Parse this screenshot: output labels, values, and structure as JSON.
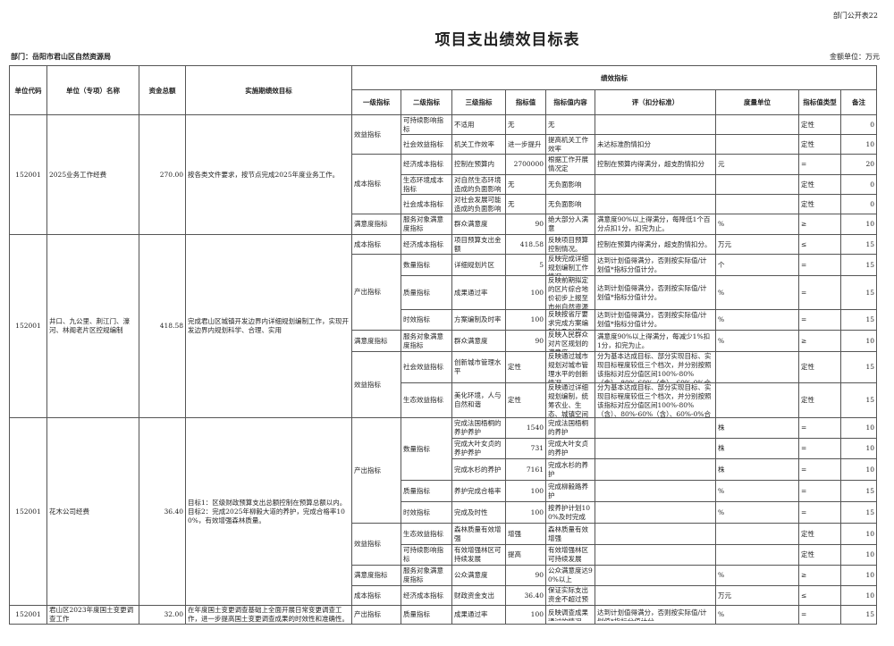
{
  "header": {
    "form_no": "部门公开表22",
    "title": "项目支出绩效目标表",
    "department": "部门：岳阳市君山区自然资源局",
    "amount_unit": "金额单位：万元"
  },
  "columns": {
    "code": "单位代码",
    "name": "单位（专项）名称",
    "amount": "资金总额",
    "goal": "实施期绩效目标",
    "indicators": "绩效指标",
    "level1": "一级指标",
    "level2": "二级指标",
    "level3": "三级指标",
    "value": "指标值",
    "content": "指标值内容",
    "standard": "评（扣分标准）",
    "unit": "度量单位",
    "type": "指标值类型",
    "note": "备注"
  },
  "projects": [
    {
      "code": "152001",
      "name": "2025业务工作经费",
      "amount": "270.00",
      "goal": "按各类文件要求，按节点完成2025年度业务工作。",
      "groups": [
        {
          "level1": "效益指标",
          "subs": [
            {
              "level2": "可持续影响指标",
              "rows": [
                {
                  "level3": "不适用",
                  "value": "无",
                  "content": "无",
                  "standard": "",
                  "unit": "",
                  "type": "定性",
                  "note": "0"
                }
              ]
            },
            {
              "level2": "社会效益指标",
              "rows": [
                {
                  "level3": "机关工作效率",
                  "value": "进一步提升",
                  "content": "提高机关工作效率",
                  "standard": "未达标准酌情扣分",
                  "unit": "",
                  "type": "定性",
                  "note": "10"
                }
              ]
            }
          ]
        },
        {
          "level1": "成本指标",
          "subs": [
            {
              "level2": "经济成本指标",
              "rows": [
                {
                  "level3": "控制在预算内",
                  "value": "2700000",
                  "content": "根据工作开展情况定",
                  "standard": "控制在预算内得满分，超支酌情扣分",
                  "unit": "元",
                  "type": "=",
                  "note": "20"
                }
              ]
            },
            {
              "level2": "生态环境成本指标",
              "rows": [
                {
                  "level3": "对自然生态环境造成的负面影响",
                  "value": "无",
                  "content": "无负面影响",
                  "standard": "",
                  "unit": "",
                  "type": "定性",
                  "note": "0"
                }
              ]
            },
            {
              "level2": "社会成本指标",
              "rows": [
                {
                  "level3": "对社会发展可能造成的负面影响",
                  "value": "无",
                  "content": "无负面影响",
                  "standard": "",
                  "unit": "",
                  "type": "定性",
                  "note": "0"
                }
              ]
            }
          ]
        },
        {
          "level1": "满意度指标",
          "subs": [
            {
              "level2": "服务对象满意度指标",
              "rows": [
                {
                  "level3": "群众满意度",
                  "value": "90",
                  "content": "绝大部分人满意",
                  "standard": "满意度90%以上得满分，每降低1个百分点扣1分，扣完为止。",
                  "unit": "%",
                  "type": "≥",
                  "note": "10"
                }
              ]
            }
          ]
        }
      ]
    },
    {
      "code": "152001",
      "name": "井口、九公里、荆江门、濠河、林阁老片区控规编制",
      "amount": "418.58",
      "goal": "完成君山区城镇开发边界内详细规划编制工作，实现开发边界内规划科学、合理、实用",
      "groups": [
        {
          "level1": "成本指标",
          "subs": [
            {
              "level2": "经济成本指标",
              "rows": [
                {
                  "level3": "项目预算支出金额",
                  "value": "418.58",
                  "content": "反映项目预算控制情况。",
                  "standard": "控制在预算内得满分，超支酌情扣分。",
                  "unit": "万元",
                  "type": "≤",
                  "note": "15"
                }
              ]
            }
          ]
        },
        {
          "level1": "产出指标",
          "subs": [
            {
              "level2": "数量指标",
              "rows": [
                {
                  "level3": "详细规划片区",
                  "value": "5",
                  "content": "反映完成详细规划编制工作情况",
                  "standard": "达到计划值得满分，否则按实际值/计划值*指标分值计分。",
                  "unit": "个",
                  "type": "=",
                  "note": "15"
                }
              ]
            },
            {
              "level2": "质量指标",
              "rows": [
                {
                  "level3": "成果通过率",
                  "value": "100",
                  "content": "反映前期拟定的区片综合地价初步上报至市州自然资源和规划局进行方案的情况",
                  "standard": "达到计划值得满分，否则按实际值/计划值*指标分值计分。",
                  "unit": "%",
                  "type": "=",
                  "note": "15"
                }
              ]
            },
            {
              "level2": "时效指标",
              "rows": [
                {
                  "level3": "方案编制及时率",
                  "value": "100",
                  "content": "反映按省厅要求完成方案编制的及时情况。",
                  "standard": "达到计划值得满分，否则按实际值/计划值*指标分值计分。",
                  "unit": "%",
                  "type": "=",
                  "note": "15"
                }
              ]
            }
          ]
        },
        {
          "level1": "满意度指标",
          "subs": [
            {
              "level2": "服务对象满意度指标",
              "rows": [
                {
                  "level3": "群众满意度",
                  "value": "90",
                  "content": "反映人民群众对片区规划的满意度。",
                  "standard": "满意度90%以上得满分，每减少1%扣1分，扣完为止。",
                  "unit": "%",
                  "type": "≥",
                  "note": "10"
                }
              ]
            }
          ]
        },
        {
          "level1": "效益指标",
          "subs": [
            {
              "level2": "社会效益指标",
              "rows": [
                {
                  "level3": "创新城市管理水平",
                  "value": "定性",
                  "content": "反映通过城市规划对城市管理水平的创新情况。",
                  "standard": "分为基本达成目标、部分实现目标、实现目标程度较低三个档次，并分别按照该指标对应分值区间100%-80%（含）、80%-60%（含）、60%-0%合理确定分值。",
                  "unit": "",
                  "type": "定性",
                  "note": "15"
                }
              ]
            },
            {
              "level2": "生态效益指标",
              "rows": [
                {
                  "level3": "美化环境，人与自然和谐",
                  "value": "定性",
                  "content": "反映通过详细规划编制，统筹农业、生态、城镇空间布局，美化环境，人与自然和谐的情况",
                  "standard": "分为基本达成目标、部分实现目标、实现目标程度较低三个档次，并分别按照该指标对应分值区间100%-80%（含）、80%-60%（含）、60%-0%合理确定分值。",
                  "unit": "",
                  "type": "定性",
                  "note": "15"
                }
              ]
            }
          ]
        }
      ]
    },
    {
      "code": "152001",
      "name": "花木公司经费",
      "amount": "36.40",
      "goal": "目标1：区级财政预算支出总额控制在预算总额以内。\n目标2：完成2025年柳毅大道的养护，完成合格率100%，有效增强森林质量。",
      "groups": [
        {
          "level1": "产出指标",
          "subs": [
            {
              "level2": "数量指标",
              "rows": [
                {
                  "level3": "完成法国梧桐的养护养护",
                  "value": "1540",
                  "content": "完成法国梧桐的养护",
                  "standard": "",
                  "unit": "株",
                  "type": "=",
                  "note": "10"
                },
                {
                  "level3": "完成大叶女贞的养护养护",
                  "value": "731",
                  "content": "完成大叶女贞的养护",
                  "standard": "",
                  "unit": "株",
                  "type": "=",
                  "note": "10"
                },
                {
                  "level3": "完成水杉的养护",
                  "value": "7161",
                  "content": "完成水杉的养护",
                  "standard": "",
                  "unit": "株",
                  "type": "=",
                  "note": "10"
                }
              ]
            },
            {
              "level2": "质量指标",
              "rows": [
                {
                  "level3": "养护完成合格率",
                  "value": "100",
                  "content": "完成柳毅路养护",
                  "standard": "",
                  "unit": "%",
                  "type": "=",
                  "note": "15"
                }
              ]
            },
            {
              "level2": "时效指标",
              "rows": [
                {
                  "level3": "完成及时性",
                  "value": "100",
                  "content": "按养护计划100%及时完成",
                  "standard": "",
                  "unit": "%",
                  "type": "=",
                  "note": "15"
                }
              ]
            }
          ]
        },
        {
          "level1": "效益指标",
          "subs": [
            {
              "level2": "生态效益指标",
              "rows": [
                {
                  "level3": "森林质量有效增强",
                  "value": "增强",
                  "content": "森林质量有效增强",
                  "standard": "",
                  "unit": "",
                  "type": "定性",
                  "note": "10"
                }
              ]
            },
            {
              "level2": "可持续影响指标",
              "rows": [
                {
                  "level3": "有效增强林区可持续发展",
                  "value": "提高",
                  "content": "有效增强林区可持续发展",
                  "standard": "",
                  "unit": "",
                  "type": "定性",
                  "note": "10"
                }
              ]
            }
          ]
        },
        {
          "level1": "满意度指标",
          "subs": [
            {
              "level2": "服务对象满意度指标",
              "rows": [
                {
                  "level3": "公众满意度",
                  "value": "90",
                  "content": "公众满意度达90%以上",
                  "standard": "",
                  "unit": "%",
                  "type": "≥",
                  "note": "10"
                }
              ]
            }
          ]
        },
        {
          "level1": "成本指标",
          "subs": [
            {
              "level2": "经济成本指标",
              "rows": [
                {
                  "level3": "财政资金支出",
                  "value": "36.40",
                  "content": "保证实际支出资金不超过预算",
                  "standard": "",
                  "unit": "万元",
                  "type": "≤",
                  "note": "10"
                }
              ]
            }
          ]
        }
      ]
    },
    {
      "code": "152001",
      "name": "君山区2023年度国土变更调查工作",
      "amount": "32.00",
      "goal": "在年度国土变更调查基础上全面开展日常变更调查工作，进一步提高国土变更调查成果的时效性和准确性。",
      "groups": [
        {
          "level1": "产出指标",
          "subs": [
            {
              "level2": "质量指标",
              "rows": [
                {
                  "level3": "成果通过率",
                  "value": "100",
                  "content": "反映调查成果通过的情况。",
                  "standard": "达到计划值得满分，否则按实际值/计划值*指标分值计分。",
                  "unit": "%",
                  "type": "=",
                  "note": "15"
                }
              ]
            }
          ]
        }
      ]
    }
  ]
}
